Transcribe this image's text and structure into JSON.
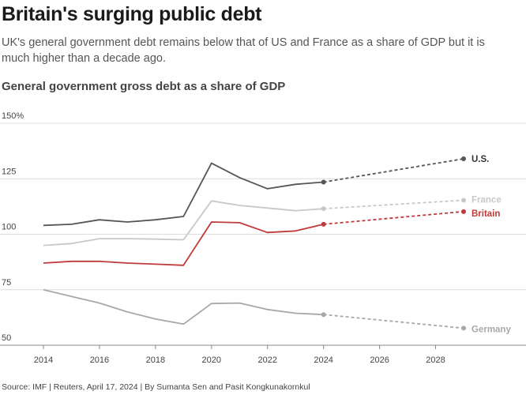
{
  "header": {
    "title": "Britain's surging public debt",
    "subtitle": "UK's general government debt remains below that of US and France as a share of GDP but it is much higher than a decade ago."
  },
  "source": "Source: IMF | Reuters, April 17, 2024 | By Sumanta Sen and Pasit Kongkunakornkul",
  "chart_data": {
    "type": "line",
    "title": "General government gross debt as a share of GDP",
    "ylim": [
      50,
      150
    ],
    "yticks": [
      50,
      75,
      100,
      125,
      150
    ],
    "ytick_labels": [
      "50",
      "75",
      "100",
      "125",
      "150%"
    ],
    "xlim": [
      2014,
      2029
    ],
    "xticks": [
      2014,
      2016,
      2018,
      2020,
      2022,
      2024,
      2026,
      2028
    ],
    "grid": true,
    "projection_start": 2024,
    "series": [
      {
        "name": "U.S.",
        "color": "#555555",
        "x": [
          2014,
          2015,
          2016,
          2017,
          2018,
          2019,
          2020,
          2021,
          2022,
          2023,
          2024,
          2029
        ],
        "values": [
          104,
          104.5,
          106.5,
          105.5,
          106.5,
          108,
          132,
          125.5,
          120.5,
          122.5,
          123.5,
          134
        ]
      },
      {
        "name": "France",
        "color": "#c8c8c8",
        "x": [
          2014,
          2015,
          2016,
          2017,
          2018,
          2019,
          2020,
          2021,
          2022,
          2023,
          2024,
          2029
        ],
        "values": [
          95,
          95.8,
          98,
          98,
          97.8,
          97.5,
          115,
          113,
          111.8,
          110.6,
          111.5,
          115.3
        ]
      },
      {
        "name": "Britain",
        "color": "#c0393b",
        "x": [
          2014,
          2015,
          2016,
          2017,
          2018,
          2019,
          2020,
          2021,
          2022,
          2023,
          2024,
          2029
        ],
        "values": [
          87,
          87.8,
          87.8,
          87,
          86.5,
          86,
          105.5,
          105.2,
          100.8,
          101.5,
          104.5,
          110.2
        ]
      },
      {
        "name": "Germany",
        "color": "#a8a8a8",
        "x": [
          2014,
          2015,
          2016,
          2017,
          2018,
          2019,
          2020,
          2021,
          2022,
          2023,
          2024,
          2029
        ],
        "values": [
          75,
          72,
          69,
          65,
          61.8,
          59.5,
          68.8,
          69,
          66.1,
          64.4,
          63.8,
          57.7
        ]
      }
    ]
  }
}
